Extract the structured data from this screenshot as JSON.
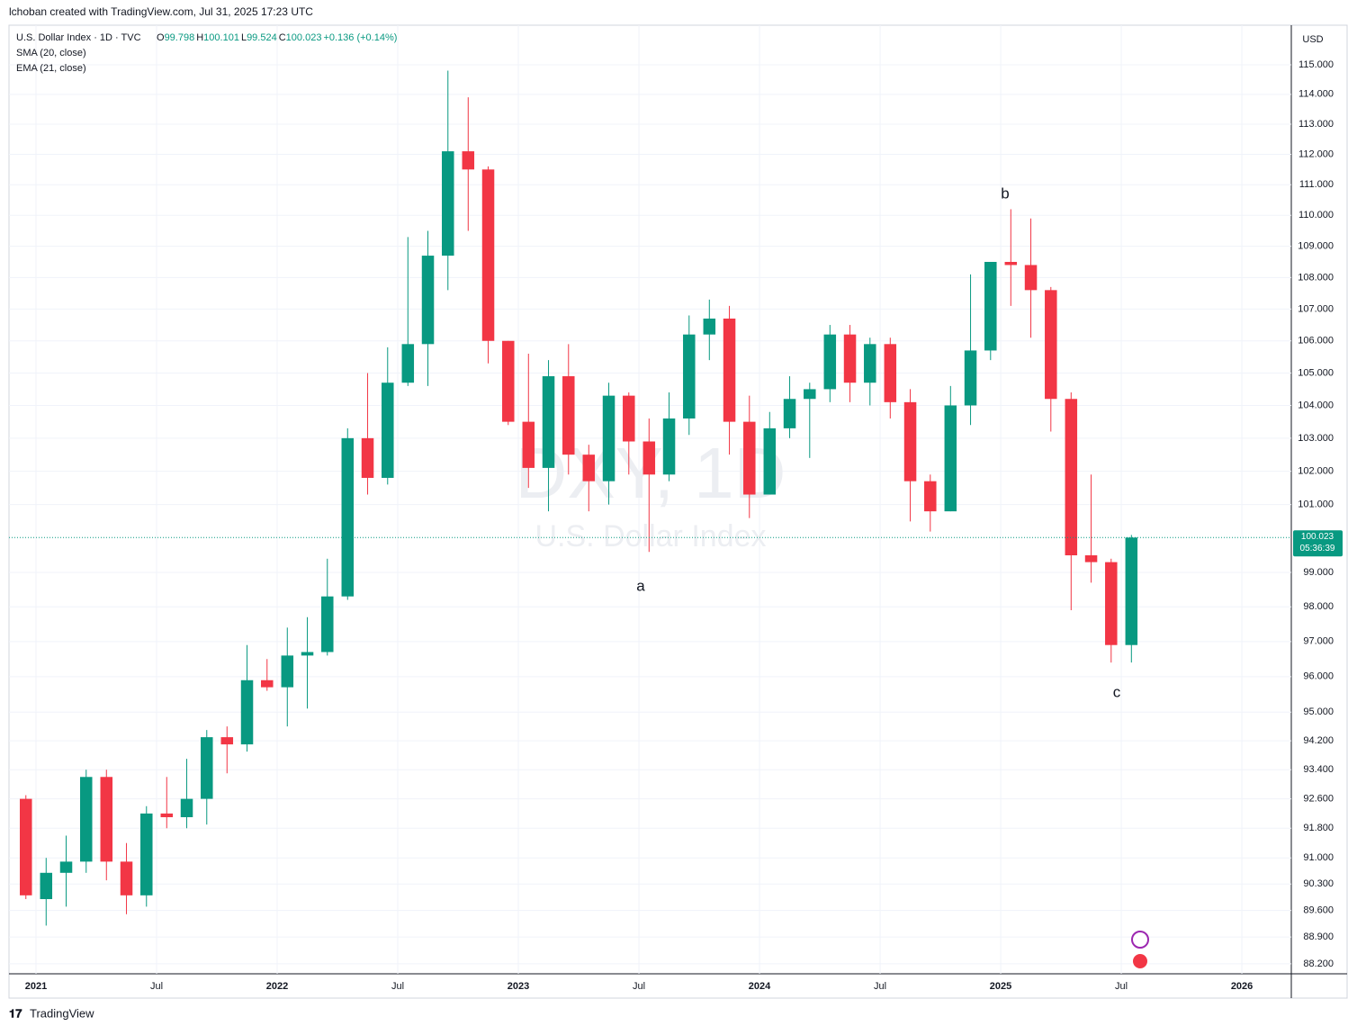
{
  "header": {
    "credit": "lchoban created with TradingView.com, Jul 31, 2025 17:23 UTC"
  },
  "legend": {
    "symbol": "U.S. Dollar Index · 1D · TVC",
    "ohlc": [
      {
        "label": "O",
        "value": 99.798
      },
      {
        "label": "H",
        "value": 100.101
      },
      {
        "label": "L",
        "value": 99.524
      },
      {
        "label": "C",
        "value": 100.023
      }
    ],
    "change": "+0.136 (+0.14%)",
    "indicators": [
      "SMA (20, close)",
      "EMA (21, close)"
    ]
  },
  "watermark": {
    "title": "DXY, 1D",
    "subtitle": "U.S. Dollar Index"
  },
  "footer": {
    "brand": "TradingView"
  },
  "chart_data": {
    "type": "candlestick",
    "currency": "USD",
    "log_scale": true,
    "grid": true,
    "up_color": "#089981",
    "down_color": "#f23645",
    "last_price": 100.023,
    "countdown": "05:36:39",
    "annotations": [
      "a",
      "b",
      "c"
    ],
    "x": [
      2020.958,
      2021.042,
      2021.125,
      2021.208,
      2021.292,
      2021.375,
      2021.458,
      2021.542,
      2021.625,
      2021.708,
      2021.792,
      2021.875,
      2021.958,
      2022.042,
      2022.125,
      2022.208,
      2022.292,
      2022.375,
      2022.458,
      2022.542,
      2022.625,
      2022.708,
      2022.792,
      2022.875,
      2022.958,
      2023.042,
      2023.125,
      2023.208,
      2023.292,
      2023.375,
      2023.458,
      2023.542,
      2023.625,
      2023.708,
      2023.792,
      2023.875,
      2023.958,
      2024.042,
      2024.125,
      2024.208,
      2024.292,
      2024.375,
      2024.458,
      2024.542,
      2024.625,
      2024.708,
      2024.792,
      2024.875,
      2024.958,
      2025.042,
      2025.125,
      2025.208,
      2025.292,
      2025.375,
      2025.458,
      2025.542
    ],
    "open": [
      92.6,
      89.9,
      90.6,
      90.9,
      93.2,
      90.9,
      90.0,
      92.2,
      92.1,
      92.6,
      94.3,
      94.1,
      95.9,
      95.7,
      96.6,
      96.7,
      98.3,
      103.0,
      101.8,
      104.7,
      105.9,
      108.7,
      112.1,
      111.5,
      106.0,
      103.5,
      102.1,
      104.9,
      102.5,
      101.7,
      104.3,
      102.9,
      101.9,
      103.6,
      106.2,
      106.7,
      103.5,
      101.3,
      103.3,
      104.2,
      104.5,
      106.2,
      104.7,
      105.9,
      104.1,
      101.7,
      100.8,
      104.0,
      105.7,
      108.5,
      108.4,
      107.6,
      104.2,
      99.5,
      99.3,
      96.9
    ],
    "high": [
      92.7,
      91.0,
      91.6,
      93.4,
      93.4,
      91.4,
      92.4,
      93.2,
      93.7,
      94.5,
      94.6,
      96.9,
      96.5,
      97.4,
      97.7,
      99.4,
      103.3,
      105.0,
      105.8,
      109.3,
      109.5,
      114.8,
      113.9,
      111.6,
      106.0,
      105.6,
      105.4,
      105.9,
      102.8,
      104.7,
      104.4,
      103.6,
      104.4,
      106.8,
      107.3,
      107.1,
      104.3,
      103.8,
      104.9,
      104.7,
      106.5,
      106.5,
      106.1,
      106.1,
      104.5,
      101.9,
      104.6,
      108.1,
      108.5,
      110.2,
      109.9,
      107.7,
      104.4,
      101.9,
      99.4,
      100.1
    ],
    "low": [
      89.9,
      89.2,
      89.7,
      90.6,
      90.4,
      89.5,
      89.7,
      91.8,
      91.8,
      91.9,
      93.3,
      93.9,
      95.6,
      94.6,
      95.1,
      96.6,
      98.2,
      101.3,
      101.6,
      104.6,
      104.6,
      107.6,
      109.5,
      105.3,
      103.4,
      101.5,
      100.8,
      101.9,
      100.8,
      101.0,
      101.9,
      99.6,
      101.7,
      103.1,
      105.4,
      102.5,
      100.6,
      101.3,
      103.0,
      102.4,
      104.1,
      104.1,
      104.0,
      103.6,
      100.5,
      100.2,
      100.8,
      103.4,
      105.4,
      107.1,
      106.1,
      103.2,
      97.9,
      98.7,
      96.4,
      96.4
    ],
    "close": [
      90.0,
      90.6,
      90.9,
      93.2,
      90.9,
      90.0,
      92.2,
      92.1,
      92.6,
      94.3,
      94.1,
      95.9,
      95.7,
      96.6,
      96.7,
      98.3,
      103.0,
      101.8,
      104.7,
      105.9,
      108.7,
      112.1,
      111.5,
      106.0,
      103.5,
      102.1,
      104.9,
      102.5,
      101.7,
      104.3,
      102.9,
      101.9,
      103.6,
      106.2,
      106.7,
      103.5,
      101.3,
      103.3,
      104.2,
      104.5,
      106.2,
      104.7,
      105.9,
      104.1,
      101.7,
      100.8,
      104.0,
      105.7,
      108.5,
      108.4,
      107.6,
      104.2,
      99.5,
      99.3,
      96.9,
      100.023
    ],
    "xlim": [
      2020.888,
      2026.205
    ],
    "xticks": [
      2021,
      {
        "value": 2021.5,
        "label": "Jul"
      },
      2022,
      {
        "value": 2022.5,
        "label": "Jul"
      },
      2023,
      {
        "value": 2023.5,
        "label": "Jul"
      },
      2024,
      {
        "value": 2024.5,
        "label": "Jul"
      },
      2025,
      {
        "value": 2025.5,
        "label": "Jul"
      },
      2026
    ],
    "ylim": [
      87.94,
      116.35
    ],
    "yticks": [
      {
        "value": 115,
        "label": "115.000"
      },
      {
        "value": 114,
        "label": "114.000"
      },
      {
        "value": 113,
        "label": "113.000"
      },
      {
        "value": 112,
        "label": "112.000"
      },
      {
        "value": 111,
        "label": "111.000"
      },
      {
        "value": 110,
        "label": "110.000"
      },
      {
        "value": 109,
        "label": "109.000"
      },
      {
        "value": 108,
        "label": "108.000"
      },
      {
        "value": 107,
        "label": "107.000"
      },
      {
        "value": 106,
        "label": "106.000"
      },
      {
        "value": 105,
        "label": "105.000"
      },
      {
        "value": 104,
        "label": "104.000"
      },
      {
        "value": 103,
        "label": "103.000"
      },
      {
        "value": 102,
        "label": "102.000"
      },
      {
        "value": 101,
        "label": "101.000"
      },
      {
        "value": 99,
        "label": "99.000"
      },
      {
        "value": 98,
        "label": "98.000"
      },
      {
        "value": 97,
        "label": "97.000"
      },
      {
        "value": 96,
        "label": "96.000"
      },
      {
        "value": 95,
        "label": "95.000"
      },
      {
        "value": 94.2,
        "label": "94.200"
      },
      {
        "value": 93.4,
        "label": "93.400"
      },
      {
        "value": 92.6,
        "label": "92.600"
      },
      {
        "value": 91.8,
        "label": "91.800"
      },
      {
        "value": 91,
        "label": "91.000"
      },
      {
        "value": 90.3,
        "label": "90.300"
      },
      {
        "value": 89.6,
        "label": "89.600"
      },
      {
        "value": 88.9,
        "label": "88.900"
      },
      {
        "value": 88.2,
        "label": "88.200"
      }
    ]
  }
}
